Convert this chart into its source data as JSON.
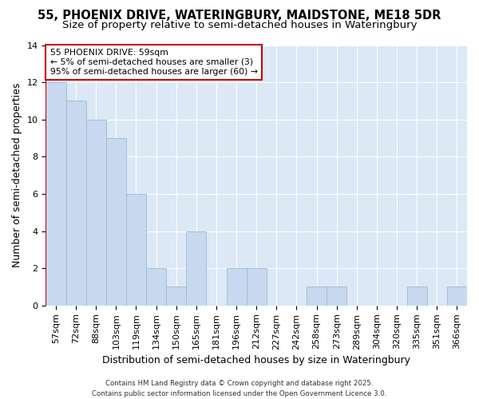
{
  "title_line1": "55, PHOENIX DRIVE, WATERINGBURY, MAIDSTONE, ME18 5DR",
  "title_line2": "Size of property relative to semi-detached houses in Wateringbury",
  "xlabel": "Distribution of semi-detached houses by size in Wateringbury",
  "ylabel": "Number of semi-detached properties",
  "categories": [
    "57sqm",
    "72sqm",
    "88sqm",
    "103sqm",
    "119sqm",
    "134sqm",
    "150sqm",
    "165sqm",
    "181sqm",
    "196sqm",
    "212sqm",
    "227sqm",
    "242sqm",
    "258sqm",
    "273sqm",
    "289sqm",
    "304sqm",
    "320sqm",
    "335sqm",
    "351sqm",
    "366sqm"
  ],
  "values": [
    12,
    11,
    10,
    9,
    6,
    2,
    1,
    4,
    0,
    2,
    2,
    0,
    0,
    1,
    1,
    0,
    0,
    0,
    1,
    0,
    1
  ],
  "bar_color": "#c8d8ee",
  "bar_edge_color": "#a0b8d8",
  "annotation_line1": "55 PHOENIX DRIVE: 59sqm",
  "annotation_line2": "← 5% of semi-detached houses are smaller (3)",
  "annotation_line3": "95% of semi-detached houses are larger (60) →",
  "annotation_box_edge_color": "#cc0000",
  "footer_text": "Contains HM Land Registry data © Crown copyright and database right 2025.\nContains public sector information licensed under the Open Government Licence 3.0.",
  "ylim": [
    0,
    14
  ],
  "yticks": [
    0,
    2,
    4,
    6,
    8,
    10,
    12,
    14
  ],
  "figure_bg": "#ffffff",
  "plot_bg": "#dce8f5",
  "grid_color": "#ffffff",
  "title_fontsize": 10.5,
  "subtitle_fontsize": 9.5,
  "tick_fontsize": 8,
  "ylabel_fontsize": 9,
  "xlabel_fontsize": 9,
  "red_line_color": "#cc0000",
  "red_line_x": -0.5
}
